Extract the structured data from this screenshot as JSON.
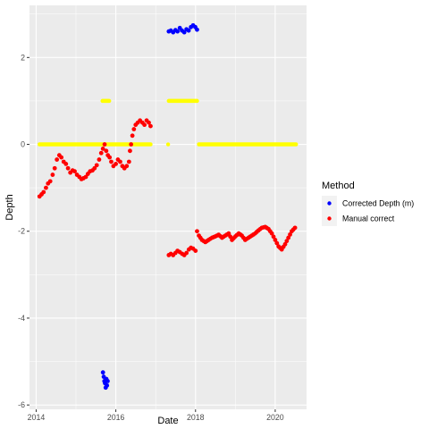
{
  "chart_data": {
    "type": "scatter",
    "xlabel": "Date",
    "ylabel": "Depth",
    "x_ticks": [
      "2014",
      "2016",
      "2018",
      "2020"
    ],
    "y_ticks": [
      2,
      0,
      -2,
      -4,
      -6
    ],
    "xlim": [
      "2013-11-01",
      "2020-10-15"
    ],
    "ylim": [
      -6.1,
      3.2
    ],
    "grid": true,
    "legend": {
      "title": "Method",
      "position": "right"
    },
    "series": [
      {
        "name": "Corrected Depth (m)",
        "color": "#0000ff",
        "points": [
          [
            "2015-09-05",
            -5.25
          ],
          [
            "2015-09-12",
            -5.35
          ],
          [
            "2015-09-18",
            -5.45
          ],
          [
            "2015-09-24",
            -5.5
          ],
          [
            "2015-09-30",
            -5.6
          ],
          [
            "2015-10-06",
            -5.4
          ],
          [
            "2015-10-12",
            -5.55
          ],
          [
            "2015-10-18",
            -5.45
          ],
          [
            "2017-05-01",
            2.6
          ],
          [
            "2017-05-20",
            2.62
          ],
          [
            "2017-06-10",
            2.58
          ],
          [
            "2017-07-01",
            2.63
          ],
          [
            "2017-07-20",
            2.6
          ],
          [
            "2017-08-10",
            2.68
          ],
          [
            "2017-08-30",
            2.62
          ],
          [
            "2017-09-20",
            2.58
          ],
          [
            "2017-10-10",
            2.65
          ],
          [
            "2017-10-30",
            2.62
          ],
          [
            "2017-11-20",
            2.7
          ],
          [
            "2017-12-10",
            2.74
          ],
          [
            "2017-12-30",
            2.7
          ],
          [
            "2018-01-15",
            2.64
          ]
        ]
      },
      {
        "name": "Manual correct",
        "color": "#ff0000",
        "points": [
          [
            "2014-02-01",
            -1.2
          ],
          [
            "2014-02-20",
            -1.15
          ],
          [
            "2014-03-10",
            -1.1
          ],
          [
            "2014-04-01",
            -1.0
          ],
          [
            "2014-04-20",
            -0.9
          ],
          [
            "2014-05-10",
            -0.85
          ],
          [
            "2014-06-01",
            -0.7
          ],
          [
            "2014-06-20",
            -0.55
          ],
          [
            "2014-07-10",
            -0.35
          ],
          [
            "2014-08-01",
            -0.25
          ],
          [
            "2014-08-20",
            -0.3
          ],
          [
            "2014-09-10",
            -0.4
          ],
          [
            "2014-10-01",
            -0.45
          ],
          [
            "2014-10-20",
            -0.55
          ],
          [
            "2014-11-10",
            -0.65
          ],
          [
            "2014-12-01",
            -0.6
          ],
          [
            "2014-12-20",
            -0.62
          ],
          [
            "2015-01-10",
            -0.7
          ],
          [
            "2015-02-01",
            -0.75
          ],
          [
            "2015-02-20",
            -0.8
          ],
          [
            "2015-03-10",
            -0.78
          ],
          [
            "2015-04-01",
            -0.75
          ],
          [
            "2015-04-20",
            -0.68
          ],
          [
            "2015-05-10",
            -0.62
          ],
          [
            "2015-06-01",
            -0.6
          ],
          [
            "2015-06-20",
            -0.55
          ],
          [
            "2015-07-10",
            -0.48
          ],
          [
            "2015-08-01",
            -0.35
          ],
          [
            "2015-08-20",
            -0.2
          ],
          [
            "2015-09-05",
            -0.1
          ],
          [
            "2015-09-20",
            0.0
          ],
          [
            "2015-10-05",
            -0.15
          ],
          [
            "2015-10-20",
            -0.25
          ],
          [
            "2015-11-05",
            -0.3
          ],
          [
            "2015-11-20",
            -0.4
          ],
          [
            "2015-12-10",
            -0.5
          ],
          [
            "2016-01-01",
            -0.45
          ],
          [
            "2016-01-20",
            -0.35
          ],
          [
            "2016-02-10",
            -0.4
          ],
          [
            "2016-03-01",
            -0.5
          ],
          [
            "2016-03-20",
            -0.55
          ],
          [
            "2016-04-10",
            -0.5
          ],
          [
            "2016-05-01",
            -0.4
          ],
          [
            "2016-05-10",
            -0.15
          ],
          [
            "2016-05-20",
            0.0
          ],
          [
            "2016-06-01",
            0.2
          ],
          [
            "2016-06-15",
            0.35
          ],
          [
            "2016-07-01",
            0.45
          ],
          [
            "2016-07-20",
            0.5
          ],
          [
            "2016-08-10",
            0.55
          ],
          [
            "2016-09-01",
            0.5
          ],
          [
            "2016-09-20",
            0.45
          ],
          [
            "2016-10-10",
            0.55
          ],
          [
            "2016-10-30",
            0.5
          ],
          [
            "2016-11-15",
            0.42
          ],
          [
            "2017-05-01",
            -2.55
          ],
          [
            "2017-05-20",
            -2.52
          ],
          [
            "2017-06-10",
            -2.55
          ],
          [
            "2017-07-01",
            -2.5
          ],
          [
            "2017-07-20",
            -2.45
          ],
          [
            "2017-08-10",
            -2.48
          ],
          [
            "2017-09-01",
            -2.52
          ],
          [
            "2017-09-20",
            -2.55
          ],
          [
            "2017-10-10",
            -2.5
          ],
          [
            "2017-11-01",
            -2.42
          ],
          [
            "2017-11-20",
            -2.38
          ],
          [
            "2017-12-10",
            -2.4
          ],
          [
            "2018-01-01",
            -2.45
          ],
          [
            "2018-01-15",
            -2.0
          ],
          [
            "2018-02-01",
            -2.1
          ],
          [
            "2018-03-01",
            -2.2
          ],
          [
            "2018-04-01",
            -2.25
          ],
          [
            "2018-05-01",
            -2.2
          ],
          [
            "2018-06-01",
            -2.15
          ],
          [
            "2018-07-01",
            -2.12
          ],
          [
            "2018-08-01",
            -2.08
          ],
          [
            "2018-09-01",
            -2.15
          ],
          [
            "2018-10-01",
            -2.1
          ],
          [
            "2018-11-01",
            -2.05
          ],
          [
            "2018-12-01",
            -2.2
          ],
          [
            "2019-01-01",
            -2.12
          ],
          [
            "2019-02-01",
            -2.05
          ],
          [
            "2019-03-01",
            -2.1
          ],
          [
            "2019-04-01",
            -2.2
          ],
          [
            "2019-05-01",
            -2.15
          ],
          [
            "2019-06-01",
            -2.1
          ],
          [
            "2019-07-01",
            -2.05
          ],
          [
            "2019-08-01",
            -1.98
          ],
          [
            "2019-09-01",
            -1.92
          ],
          [
            "2019-10-01",
            -1.9
          ],
          [
            "2019-11-01",
            -1.95
          ],
          [
            "2019-12-01",
            -2.05
          ],
          [
            "2020-01-01",
            -2.2
          ],
          [
            "2020-02-01",
            -2.35
          ],
          [
            "2020-03-01",
            -2.42
          ],
          [
            "2020-04-01",
            -2.3
          ],
          [
            "2020-05-01",
            -2.15
          ],
          [
            "2020-06-01",
            -2.0
          ],
          [
            "2020-07-01",
            -1.92
          ]
        ]
      }
    ],
    "unlabeled_series": [
      {
        "color": "#ffff00",
        "segments": [
          {
            "x_start": "2014-02-01",
            "x_end": "2016-11-15",
            "y": 0
          },
          {
            "x_start": "2015-09-01",
            "x_end": "2015-11-01",
            "y": 1.0
          },
          {
            "x_start": "2017-05-01",
            "x_end": "2018-01-15",
            "y": 1.0
          },
          {
            "x_start": "2018-02-01",
            "x_end": "2020-07-10",
            "y": 0
          }
        ],
        "points": [
          {
            "x": "2017-04-25",
            "y": 0
          }
        ]
      }
    ]
  }
}
